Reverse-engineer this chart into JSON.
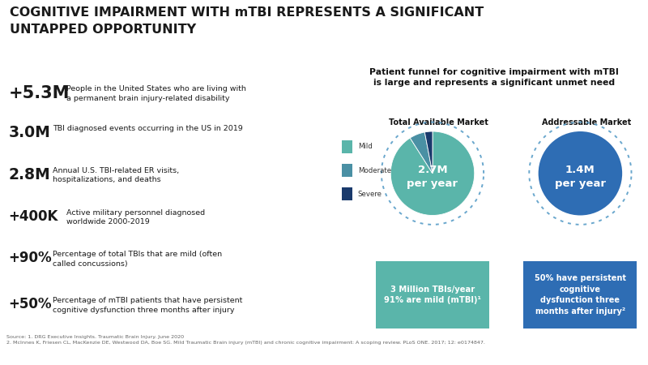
{
  "title_line1": "COGNITIVE IMPAIRMENT WITH mTBI REPRESENTS A SIGNIFICANT",
  "title_line2": "UNTAPPED OPPORTUNITY",
  "bg_color": "#ffffff",
  "panel_bg": "#8ab5a8",
  "stat_numbers": [
    "+5.3M",
    "3.0M",
    "2.8M",
    "+400K",
    "+90%",
    "+50%"
  ],
  "stat_descs": [
    "People in the United States who are living with\na permanent brain injury-related disability",
    "TBI diagnosed events occurring in the US in 2019",
    "Annual U.S. TBI-related ER visits,\nhospitalizations, and deaths",
    "Active military personnel diagnosed\nworldwide 2000-2019",
    "Percentage of total TBIs that are mild (often\ncalled concussions)",
    "Percentage of mTBI patients that have persistent\ncognitive dysfunction three months after injury"
  ],
  "right_title": "Patient funnel for cognitive impairment with mTBI\nis large and represents a significant unmet need",
  "col1_title": "Total Available Market",
  "col2_title": "Addressable Market",
  "box1_text": "3 Million TBIs/year\n91% are mild (mTBI)¹",
  "box2_text": "50% have persistent\ncognitive\ndysfunction three\nmonths after injury²",
  "legend_items": [
    "Mild",
    "Moderate",
    "Severe"
  ],
  "pie1_colors": [
    "#5ab5aa",
    "#4a90a4",
    "#1a3a6c"
  ],
  "circle1_color": "#5ab5aa",
  "circle2_color": "#2e6db4",
  "box1_color": "#5ab5aa",
  "box2_color": "#2e6db4",
  "dotted_border": "#5a9ec8",
  "source_text": "Source: 1. DRG Executive Insights. Traumatic Brain Injury. June 2020\n2. McInnes K, Friesen CL, MacKenzie DE, Westwood DA, Boe SG. Mild Traumatic Brain injury (mTBI) and chronic cognitive impairment: A scoping review. PLoS ONE. 2017; 12: e0174847.",
  "pie1_slices": [
    91,
    6,
    3
  ],
  "pie1_label": "2.7M\nper year",
  "pie2_label": "1.4M\nper year"
}
